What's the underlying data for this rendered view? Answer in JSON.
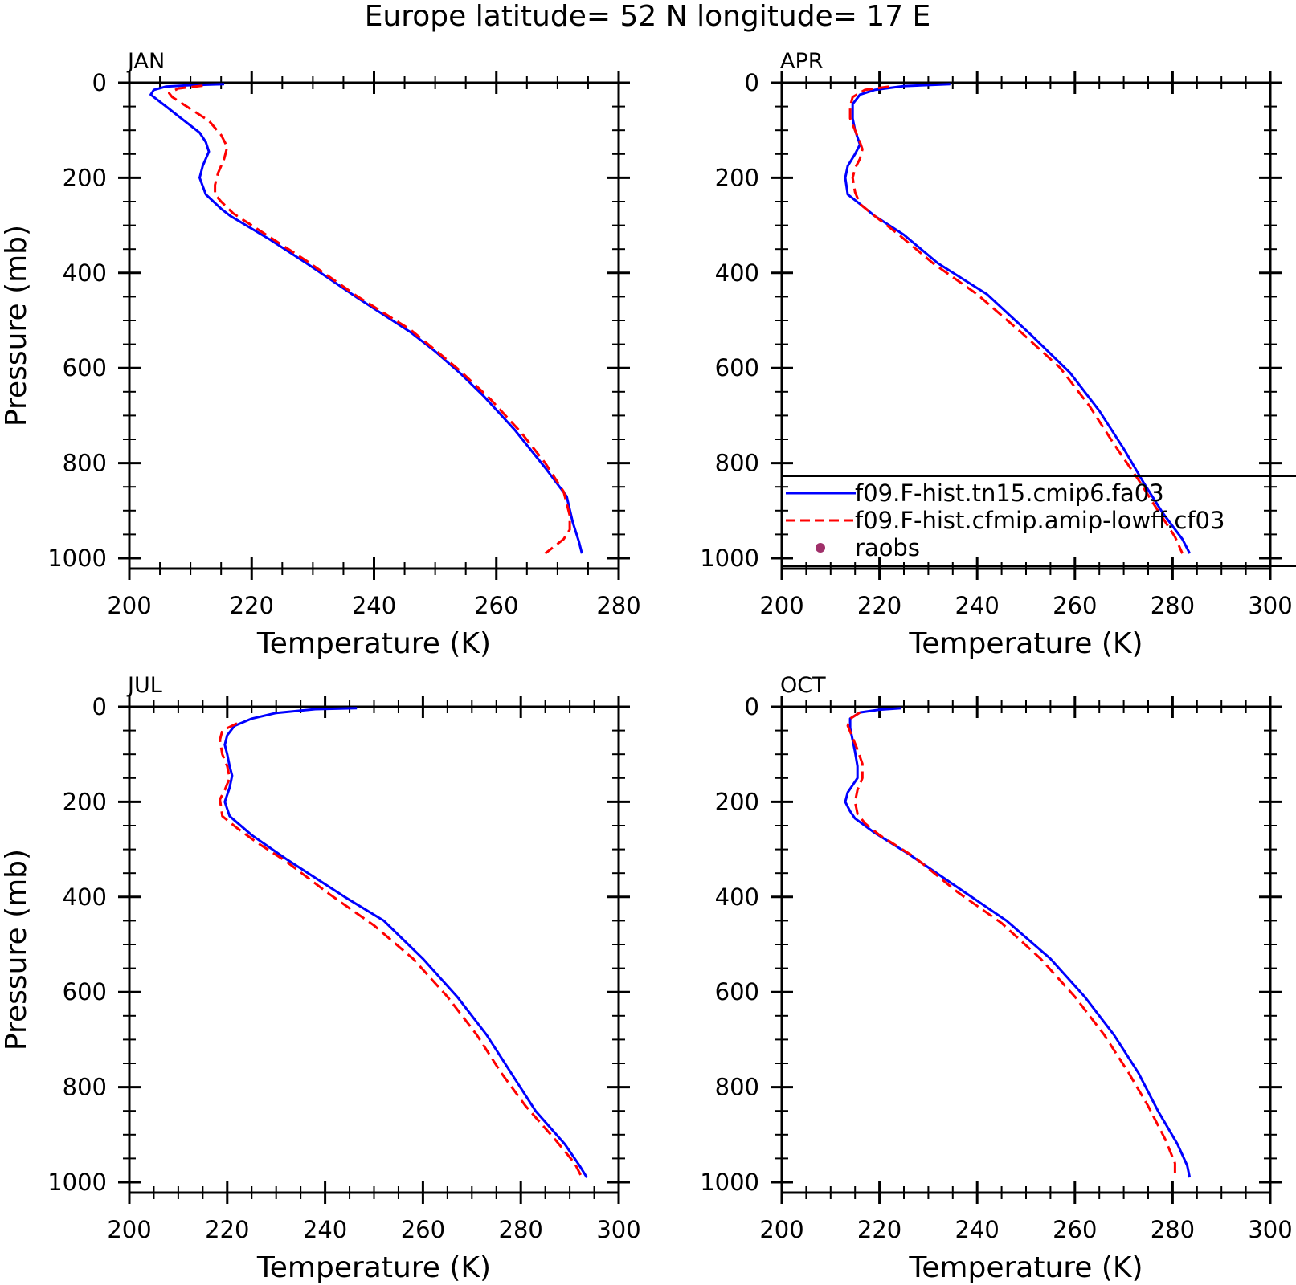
{
  "figure": {
    "title": "Europe  latitude= 52 N longitude= 17 E"
  },
  "colors": {
    "model_a": "#0000ff",
    "model_b": "#ff0000",
    "raobs": "#a0306a",
    "axes": "#000000"
  },
  "legend": {
    "panel": "APR",
    "entries": [
      {
        "label": "f09.F-hist.tn15.cmip6.fa03",
        "style": "solid",
        "color": "#0000ff"
      },
      {
        "label": "f09.F-hist.cfmip.amip-lowff.cf03",
        "style": "dashed",
        "color": "#ff0000"
      },
      {
        "label": "raobs",
        "style": "marker",
        "color": "#a0306a"
      }
    ]
  },
  "chart_data": [
    {
      "type": "line",
      "title": "JAN",
      "xlabel": "Temperature (K)",
      "ylabel": "Pressure (mb)",
      "xlim": [
        200,
        280
      ],
      "ylim": [
        1000,
        0
      ],
      "x_ticks": [
        200,
        220,
        240,
        260,
        280
      ],
      "y_ticks": [
        0,
        200,
        400,
        600,
        800,
        1000
      ],
      "grid": false,
      "series": [
        {
          "name": "f09.F-hist.tn15.cmip6.fa03",
          "color": "#0000ff",
          "style": "solid",
          "points": [
            [
              215.5,
              3
            ],
            [
              210,
              5
            ],
            [
              206,
              8
            ],
            [
              204,
              15
            ],
            [
              203.5,
              25
            ],
            [
              206,
              50
            ],
            [
              209,
              80
            ],
            [
              211.5,
              105
            ],
            [
              212.5,
              125
            ],
            [
              213,
              145
            ],
            [
              212,
              175
            ],
            [
              211.5,
              200
            ],
            [
              212.5,
              235
            ],
            [
              215,
              265
            ],
            [
              216.5,
              280
            ],
            [
              223,
              330
            ],
            [
              229,
              380
            ],
            [
              237,
              450
            ],
            [
              246,
              525
            ],
            [
              250,
              565
            ],
            [
              254,
              610
            ],
            [
              258,
              660
            ],
            [
              263,
              730
            ],
            [
              268,
              810
            ],
            [
              271.5,
              870
            ],
            [
              272.5,
              925
            ],
            [
              273.5,
              965
            ],
            [
              274,
              990
            ]
          ]
        },
        {
          "name": "f09.F-hist.cfmip.amip-lowff.cf03",
          "color": "#ff0000",
          "style": "dashed",
          "points": [
            [
              212,
              6
            ],
            [
              208,
              12
            ],
            [
              206.5,
              22
            ],
            [
              207,
              30
            ],
            [
              210,
              55
            ],
            [
              213,
              80
            ],
            [
              215,
              110
            ],
            [
              216,
              135
            ],
            [
              215.5,
              160
            ],
            [
              214.5,
              190
            ],
            [
              214,
              215
            ],
            [
              214,
              235
            ],
            [
              215,
              250
            ],
            [
              217,
              275
            ],
            [
              223,
              325
            ],
            [
              229,
              375
            ],
            [
              237,
              447
            ],
            [
              246,
              520
            ],
            [
              250,
              562
            ],
            [
              254,
              605
            ],
            [
              259,
              665
            ],
            [
              264,
              735
            ],
            [
              268,
              800
            ],
            [
              271,
              860
            ],
            [
              272,
              910
            ],
            [
              272,
              940
            ],
            [
              271,
              960
            ],
            [
              268,
              990
            ]
          ]
        }
      ]
    },
    {
      "type": "line",
      "title": "APR",
      "xlabel": "Temperature (K)",
      "ylabel": "",
      "xlim": [
        200,
        300
      ],
      "ylim": [
        1000,
        0
      ],
      "x_ticks": [
        200,
        220,
        240,
        260,
        280,
        300
      ],
      "y_ticks": [
        0,
        200,
        400,
        600,
        800,
        1000
      ],
      "grid": false,
      "series": [
        {
          "name": "f09.F-hist.tn15.cmip6.fa03",
          "color": "#0000ff",
          "style": "solid",
          "points": [
            [
              234.5,
              3
            ],
            [
              225,
              7
            ],
            [
              219,
              15
            ],
            [
              216,
              25
            ],
            [
              214.5,
              45
            ],
            [
              214.5,
              75
            ],
            [
              215,
              100
            ],
            [
              216,
              130
            ],
            [
              215,
              150
            ],
            [
              213.5,
              175
            ],
            [
              213,
              200
            ],
            [
              213.5,
              235
            ],
            [
              216,
              255
            ],
            [
              219,
              280
            ],
            [
              225,
              320
            ],
            [
              232,
              380
            ],
            [
              242,
              445
            ],
            [
              251,
              530
            ],
            [
              259,
              610
            ],
            [
              265,
              690
            ],
            [
              270,
              770
            ],
            [
              274,
              840
            ],
            [
              278,
              905
            ],
            [
              282,
              960
            ],
            [
              283.5,
              990
            ]
          ]
        },
        {
          "name": "f09.F-hist.cfmip.amip-lowff.cf03",
          "color": "#ff0000",
          "style": "dashed",
          "points": [
            [
              222,
              8
            ],
            [
              217,
              15
            ],
            [
              214.5,
              30
            ],
            [
              214,
              50
            ],
            [
              214,
              75
            ],
            [
              215,
              100
            ],
            [
              216,
              125
            ],
            [
              216.5,
              140
            ],
            [
              216,
              160
            ],
            [
              215,
              180
            ],
            [
              214.5,
              200
            ],
            [
              215,
              230
            ],
            [
              216,
              255
            ],
            [
              219,
              280
            ],
            [
              224,
              320
            ],
            [
              231,
              380
            ],
            [
              240,
              445
            ],
            [
              249,
              525
            ],
            [
              257,
              600
            ],
            [
              263,
              680
            ],
            [
              268,
              760
            ],
            [
              273,
              835
            ],
            [
              277,
              900
            ],
            [
              280.5,
              955
            ],
            [
              282,
              990
            ]
          ]
        }
      ]
    },
    {
      "type": "line",
      "title": "JUL",
      "xlabel": "Temperature (K)",
      "ylabel": "Pressure (mb)",
      "xlim": [
        200,
        300
      ],
      "ylim": [
        1000,
        0
      ],
      "x_ticks": [
        200,
        220,
        240,
        260,
        280,
        300
      ],
      "y_ticks": [
        0,
        200,
        400,
        600,
        800,
        1000
      ],
      "grid": false,
      "series": [
        {
          "name": "f09.F-hist.tn15.cmip6.fa03",
          "color": "#0000ff",
          "style": "solid",
          "points": [
            [
              246.5,
              3
            ],
            [
              238,
              5
            ],
            [
              230,
              13
            ],
            [
              225,
              25
            ],
            [
              221.5,
              40
            ],
            [
              220,
              60
            ],
            [
              219.5,
              80
            ],
            [
              220,
              100
            ],
            [
              220.5,
              125
            ],
            [
              221,
              145
            ],
            [
              220.5,
              170
            ],
            [
              219.5,
              200
            ],
            [
              220.5,
              230
            ],
            [
              225,
              270
            ],
            [
              232,
              320
            ],
            [
              244,
              400
            ],
            [
              252,
              450
            ],
            [
              260,
              530
            ],
            [
              267,
              610
            ],
            [
              273,
              690
            ],
            [
              278,
              770
            ],
            [
              283,
              850
            ],
            [
              289,
              920
            ],
            [
              292,
              965
            ],
            [
              293.5,
              990
            ]
          ]
        },
        {
          "name": "f09.F-hist.cfmip.amip-lowff.cf03",
          "color": "#ff0000",
          "style": "dashed",
          "points": [
            [
              222,
              35
            ],
            [
              219,
              50
            ],
            [
              218.5,
              70
            ],
            [
              219,
              100
            ],
            [
              220,
              125
            ],
            [
              220.5,
              150
            ],
            [
              219.5,
              175
            ],
            [
              218.5,
              195
            ],
            [
              219,
              230
            ],
            [
              222,
              255
            ],
            [
              226,
              285
            ],
            [
              232,
              325
            ],
            [
              241,
              395
            ],
            [
              250,
              460
            ],
            [
              258,
              530
            ],
            [
              265,
              610
            ],
            [
              271,
              690
            ],
            [
              276,
              770
            ],
            [
              281,
              840
            ],
            [
              287,
              910
            ],
            [
              291,
              960
            ],
            [
              292.5,
              990
            ]
          ]
        }
      ]
    },
    {
      "type": "line",
      "title": "OCT",
      "xlabel": "Temperature (K)",
      "ylabel": "",
      "xlim": [
        200,
        300
      ],
      "ylim": [
        1000,
        0
      ],
      "x_ticks": [
        200,
        220,
        240,
        260,
        280,
        300
      ],
      "y_ticks": [
        0,
        200,
        400,
        600,
        800,
        1000
      ],
      "grid": false,
      "series": [
        {
          "name": "f09.F-hist.tn15.cmip6.fa03",
          "color": "#0000ff",
          "style": "solid",
          "points": [
            [
              224.5,
              3
            ],
            [
              220,
              6
            ],
            [
              216,
              12
            ],
            [
              214,
              25
            ],
            [
              214,
              45
            ],
            [
              214.5,
              70
            ],
            [
              215,
              95
            ],
            [
              215.5,
              125
            ],
            [
              215.5,
              150
            ],
            [
              214.5,
              165
            ],
            [
              213.5,
              180
            ],
            [
              213,
              200
            ],
            [
              214,
              220
            ],
            [
              215,
              235
            ],
            [
              219,
              265
            ],
            [
              226,
              310
            ],
            [
              236,
              380
            ],
            [
              246,
              450
            ],
            [
              255,
              530
            ],
            [
              262,
              610
            ],
            [
              268,
              690
            ],
            [
              273,
              770
            ],
            [
              277,
              850
            ],
            [
              281,
              920
            ],
            [
              283,
              965
            ],
            [
              283.5,
              990
            ]
          ]
        },
        {
          "name": "f09.F-hist.cfmip.amip-lowff.cf03",
          "color": "#ff0000",
          "style": "dashed",
          "points": [
            [
              216,
              12
            ],
            [
              214,
              25
            ],
            [
              213.5,
              40
            ],
            [
              214.5,
              65
            ],
            [
              215.5,
              90
            ],
            [
              216.5,
              120
            ],
            [
              216.5,
              150
            ],
            [
              215.5,
              175
            ],
            [
              215,
              200
            ],
            [
              215.5,
              225
            ],
            [
              217,
              245
            ],
            [
              220,
              270
            ],
            [
              227,
              315
            ],
            [
              236,
              390
            ],
            [
              245,
              455
            ],
            [
              253,
              530
            ],
            [
              260,
              610
            ],
            [
              266,
              690
            ],
            [
              271,
              770
            ],
            [
              275,
              840
            ],
            [
              278.5,
              910
            ],
            [
              280.5,
              960
            ],
            [
              280.5,
              990
            ]
          ]
        }
      ]
    }
  ]
}
